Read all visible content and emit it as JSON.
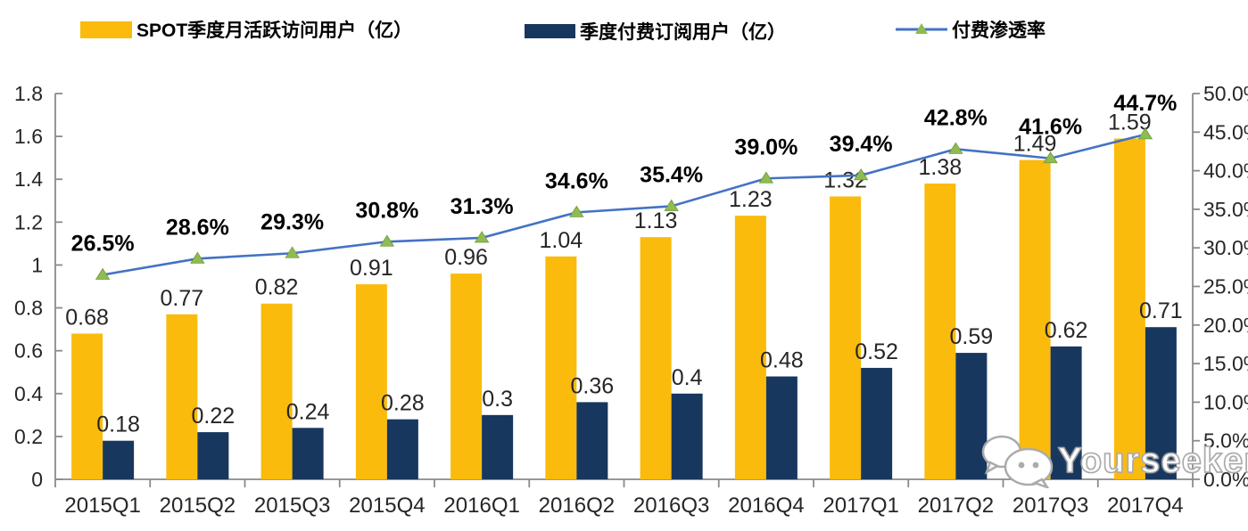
{
  "legend": {
    "items": [
      {
        "label": "SPOT季度月活跃访问用户（亿）",
        "swatch": "bar",
        "color": "#FABB0C"
      },
      {
        "label": "季度付费订阅用户（亿）",
        "swatch": "bar",
        "color": "#17375E"
      },
      {
        "label": "付费渗透率",
        "swatch": "line",
        "color": "#4472C4",
        "marker_color": "#8FBC51"
      }
    ]
  },
  "chart_data": {
    "type": "bar",
    "title": "",
    "categories": [
      "2015Q1",
      "2015Q2",
      "2015Q3",
      "2015Q4",
      "2016Q1",
      "2016Q2",
      "2016Q3",
      "2016Q4",
      "2017Q1",
      "2017Q2",
      "2017Q3",
      "2017Q4"
    ],
    "series": [
      {
        "name": "SPOT季度月活跃访问用户（亿）",
        "type": "bar",
        "axis": "left",
        "color": "#FABB0C",
        "values": [
          0.68,
          0.77,
          0.82,
          0.91,
          0.96,
          1.04,
          1.13,
          1.23,
          1.32,
          1.38,
          1.49,
          1.59
        ],
        "labels": [
          "0.68",
          "0.77",
          "0.82",
          "0.91",
          "0.96",
          "1.04",
          "1.13",
          "1.23",
          "1.32",
          "1.38",
          "1.49",
          "1.59"
        ]
      },
      {
        "name": "季度付费订阅用户（亿）",
        "type": "bar",
        "axis": "left",
        "color": "#17375E",
        "values": [
          0.18,
          0.22,
          0.24,
          0.28,
          0.3,
          0.36,
          0.4,
          0.48,
          0.52,
          0.59,
          0.62,
          0.71
        ],
        "labels": [
          "0.18",
          "0.22",
          "0.24",
          "0.28",
          "0.3",
          "0.36",
          "0.4",
          "0.48",
          "0.52",
          "0.59",
          "0.62",
          "0.71"
        ]
      },
      {
        "name": "付费渗透率",
        "type": "line",
        "axis": "right",
        "color": "#4472C4",
        "marker": "triangle",
        "marker_color": "#8FBC51",
        "values": [
          26.5,
          28.6,
          29.3,
          30.8,
          31.3,
          34.6,
          35.4,
          39.0,
          39.4,
          42.8,
          41.6,
          44.7
        ],
        "labels": [
          "26.5%",
          "28.6%",
          "29.3%",
          "30.8%",
          "31.3%",
          "34.6%",
          "35.4%",
          "39.0%",
          "39.4%",
          "42.8%",
          "41.6%",
          "44.7%"
        ]
      }
    ],
    "left_axis": {
      "min": 0,
      "max": 1.8,
      "tick_labels": [
        "0",
        "0.2",
        "0.4",
        "0.6",
        "0.8",
        "1",
        "1.2",
        "1.4",
        "1.6",
        "1.8"
      ]
    },
    "right_axis": {
      "min": 0,
      "max": 50,
      "tick_labels": [
        "0.0%",
        "5.0%",
        "10.0%",
        "15.0%",
        "20.0%",
        "25.0%",
        "30.0%",
        "35.0%",
        "40.0%",
        "45.0%",
        "50.0%"
      ]
    },
    "grid": false,
    "legend_position": "top"
  },
  "watermark": {
    "text": "Yourseeker",
    "icon": "chat-bubbles-icon"
  }
}
